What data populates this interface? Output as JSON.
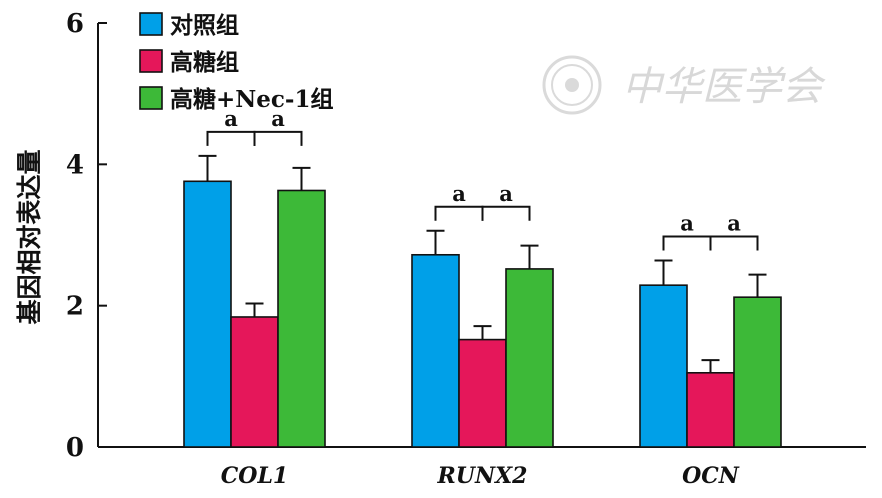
{
  "chart_data": {
    "type": "bar",
    "categories": [
      "COL1",
      "RUNX2",
      "OCN"
    ],
    "series": [
      {
        "name": "对照组",
        "color": "#00a0e8",
        "values": [
          3.76,
          2.72,
          2.29
        ],
        "errors": [
          0.36,
          0.34,
          0.35
        ]
      },
      {
        "name": "高糖组",
        "color": "#e5175a",
        "values": [
          1.84,
          1.52,
          1.05
        ],
        "errors": [
          0.19,
          0.19,
          0.18
        ]
      },
      {
        "name": "高糖+Nec-1组",
        "color": "#3db938",
        "values": [
          3.63,
          2.52,
          2.12
        ],
        "errors": [
          0.32,
          0.33,
          0.32
        ]
      }
    ],
    "significance": [
      {
        "category": "COL1",
        "label": "a"
      },
      {
        "category": "RUNX2",
        "label": "a"
      },
      {
        "category": "OCN",
        "label": "a"
      }
    ],
    "xlabel": "",
    "ylabel": "基因相对表达量",
    "ylim": [
      0,
      6
    ],
    "yticks": [
      0,
      2,
      4,
      6
    ],
    "grid": false,
    "legend_position": "top-left"
  },
  "watermark": {
    "text": "中华医学会",
    "seal_icon": "seal-icon"
  }
}
